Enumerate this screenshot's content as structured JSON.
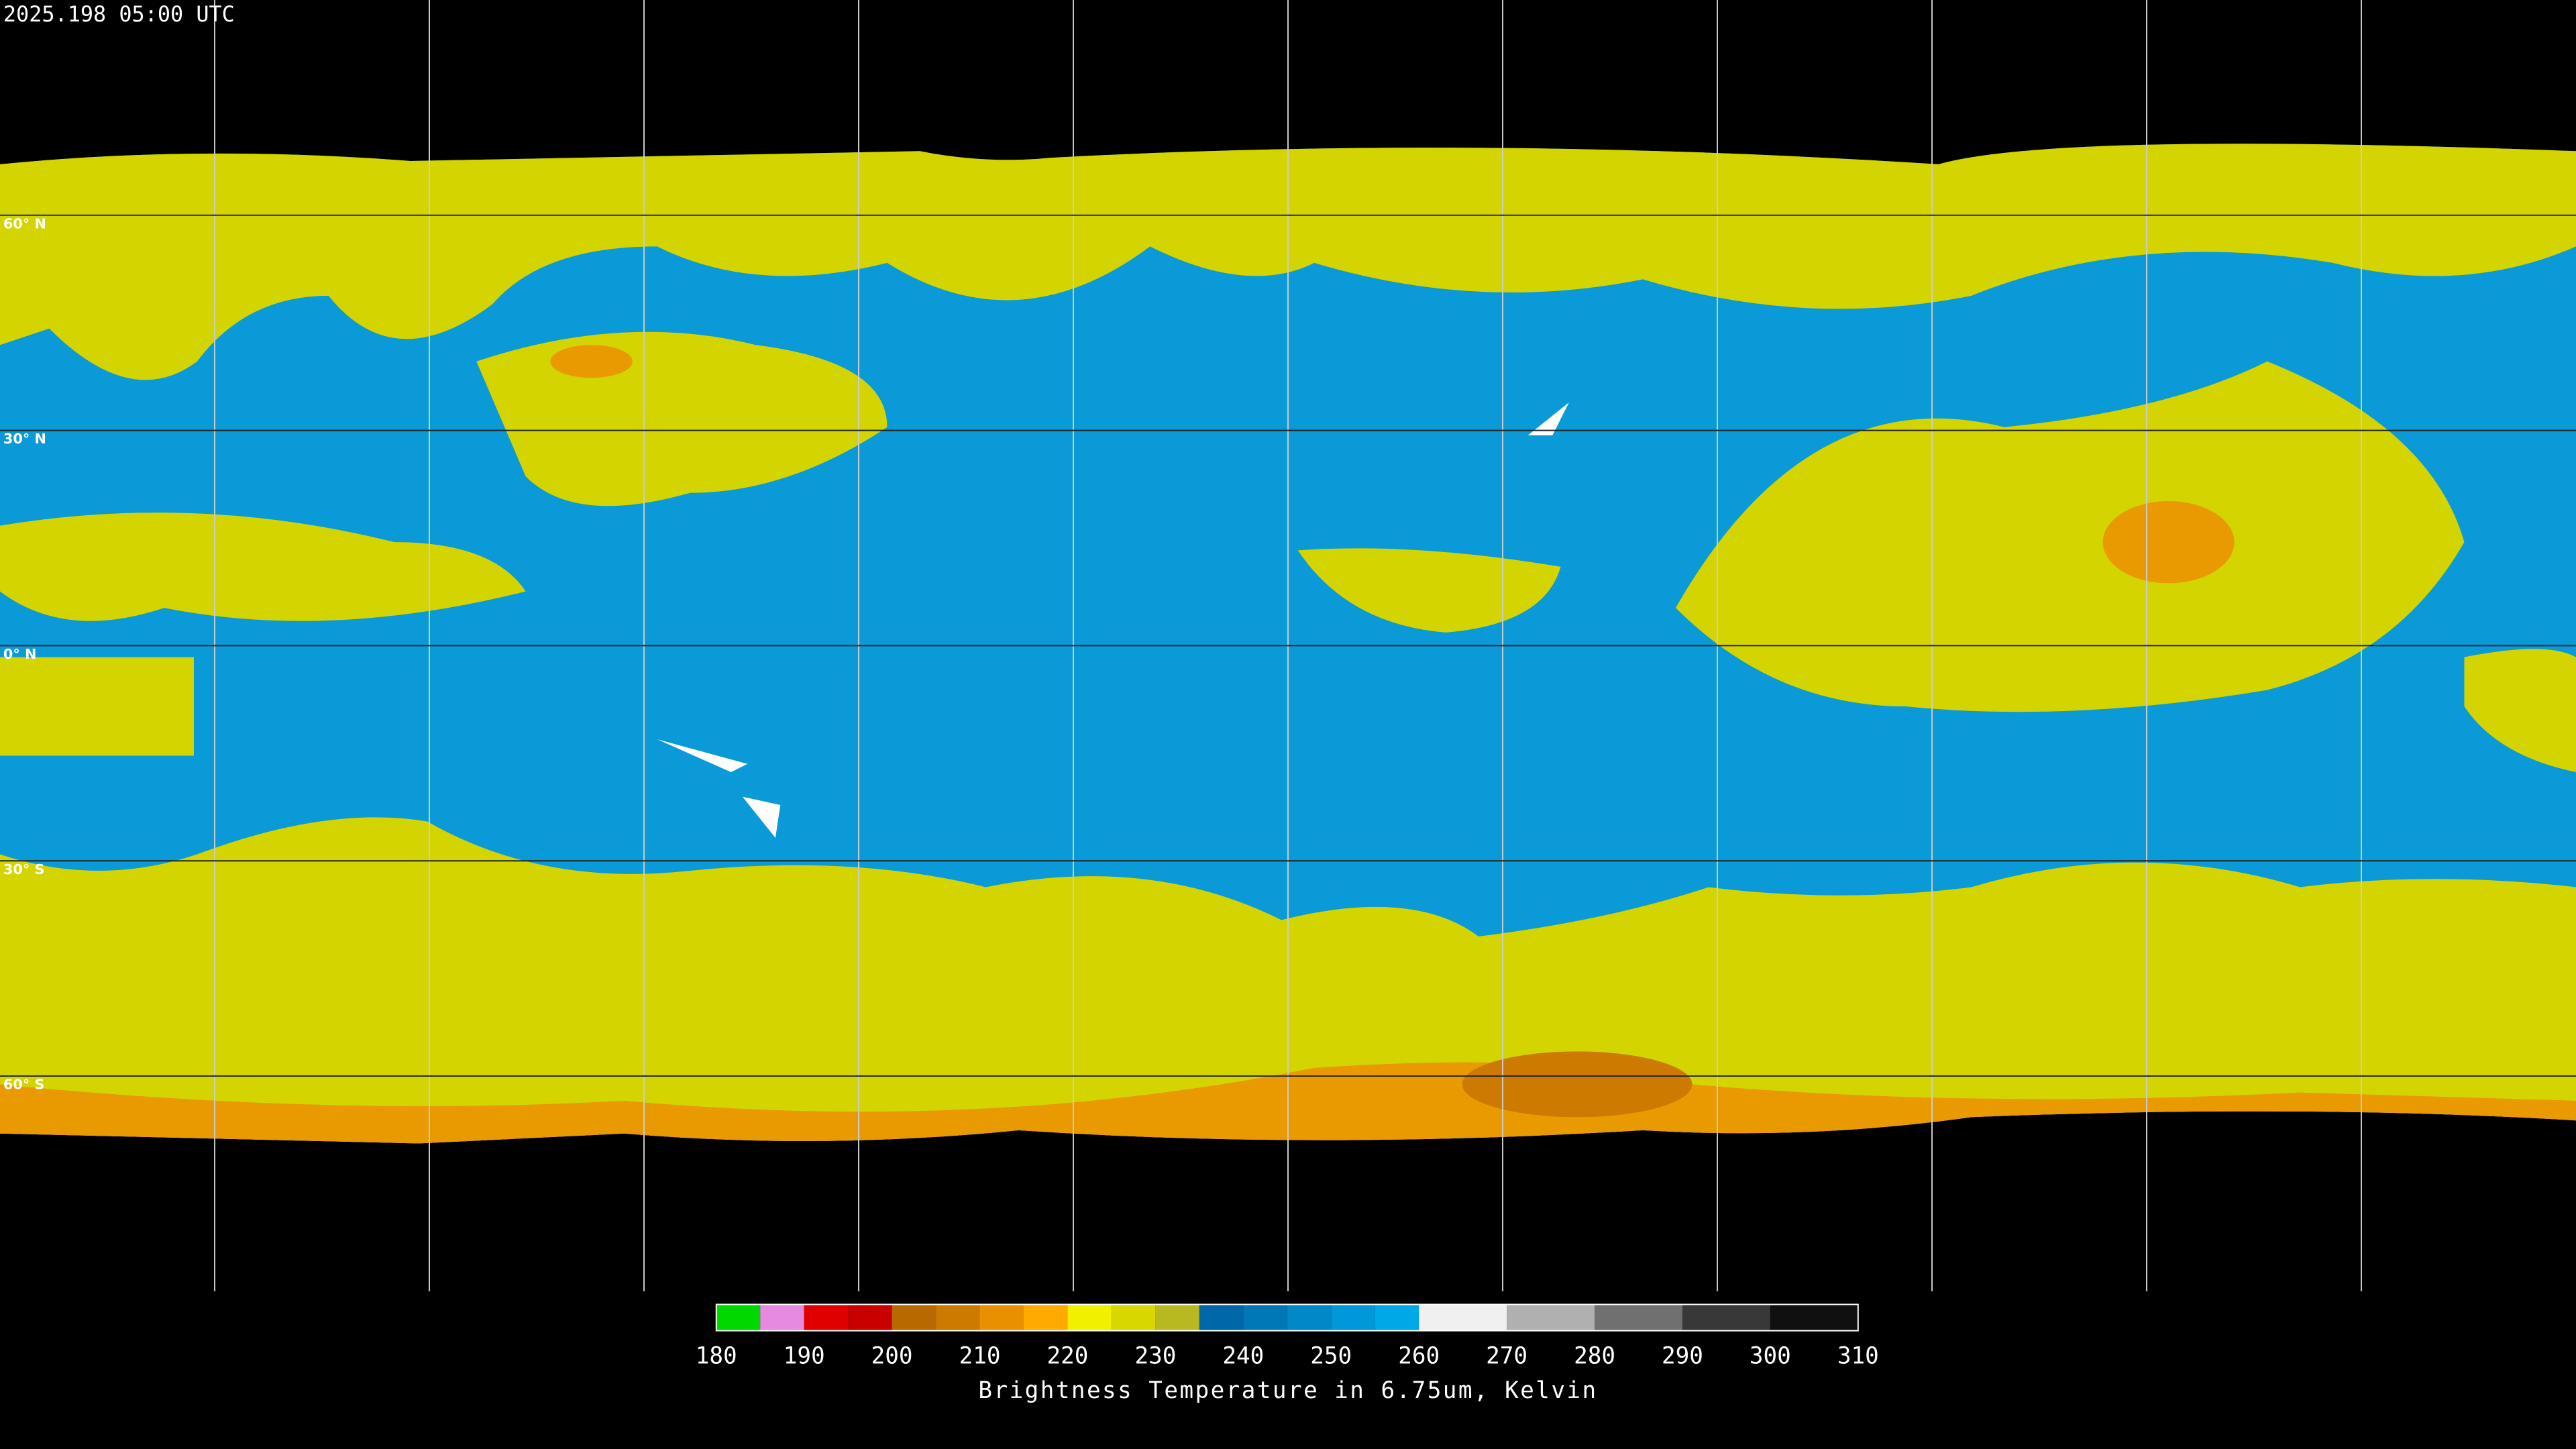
{
  "header": {
    "title": "2025.198 05:00 UTC"
  },
  "map": {
    "lat_labels": [
      "60° N",
      "30° N",
      "0° N",
      "30° S",
      "60° S"
    ]
  },
  "colorbar": {
    "range": [
      180,
      310
    ],
    "ticks": [
      180,
      190,
      200,
      210,
      220,
      230,
      240,
      250,
      260,
      270,
      280,
      290,
      300,
      310
    ],
    "label": "Brightness Temperature in 6.75um, Kelvin",
    "segments": [
      {
        "from": 180,
        "to": 185,
        "color": "#00d800"
      },
      {
        "from": 185,
        "to": 190,
        "color": "#e58ae0"
      },
      {
        "from": 190,
        "to": 195,
        "color": "#e00000"
      },
      {
        "from": 195,
        "to": 200,
        "color": "#c80000"
      },
      {
        "from": 200,
        "to": 205,
        "color": "#b86a00"
      },
      {
        "from": 205,
        "to": 210,
        "color": "#cc7a00"
      },
      {
        "from": 210,
        "to": 215,
        "color": "#e89000"
      },
      {
        "from": 215,
        "to": 220,
        "color": "#ffaa00"
      },
      {
        "from": 220,
        "to": 225,
        "color": "#f0f000"
      },
      {
        "from": 225,
        "to": 230,
        "color": "#d8d800"
      },
      {
        "from": 230,
        "to": 235,
        "color": "#b8b820"
      },
      {
        "from": 235,
        "to": 240,
        "color": "#0068a8"
      },
      {
        "from": 240,
        "to": 245,
        "color": "#0078b8"
      },
      {
        "from": 245,
        "to": 250,
        "color": "#0088c8"
      },
      {
        "from": 250,
        "to": 255,
        "color": "#0098d8"
      },
      {
        "from": 255,
        "to": 260,
        "color": "#00a8e8"
      },
      {
        "from": 260,
        "to": 270,
        "color": "#f0f0f0"
      },
      {
        "from": 270,
        "to": 280,
        "color": "#b0b0b0"
      },
      {
        "from": 280,
        "to": 290,
        "color": "#707070"
      },
      {
        "from": 290,
        "to": 300,
        "color": "#383838"
      },
      {
        "from": 300,
        "to": 310,
        "color": "#101010"
      }
    ]
  }
}
